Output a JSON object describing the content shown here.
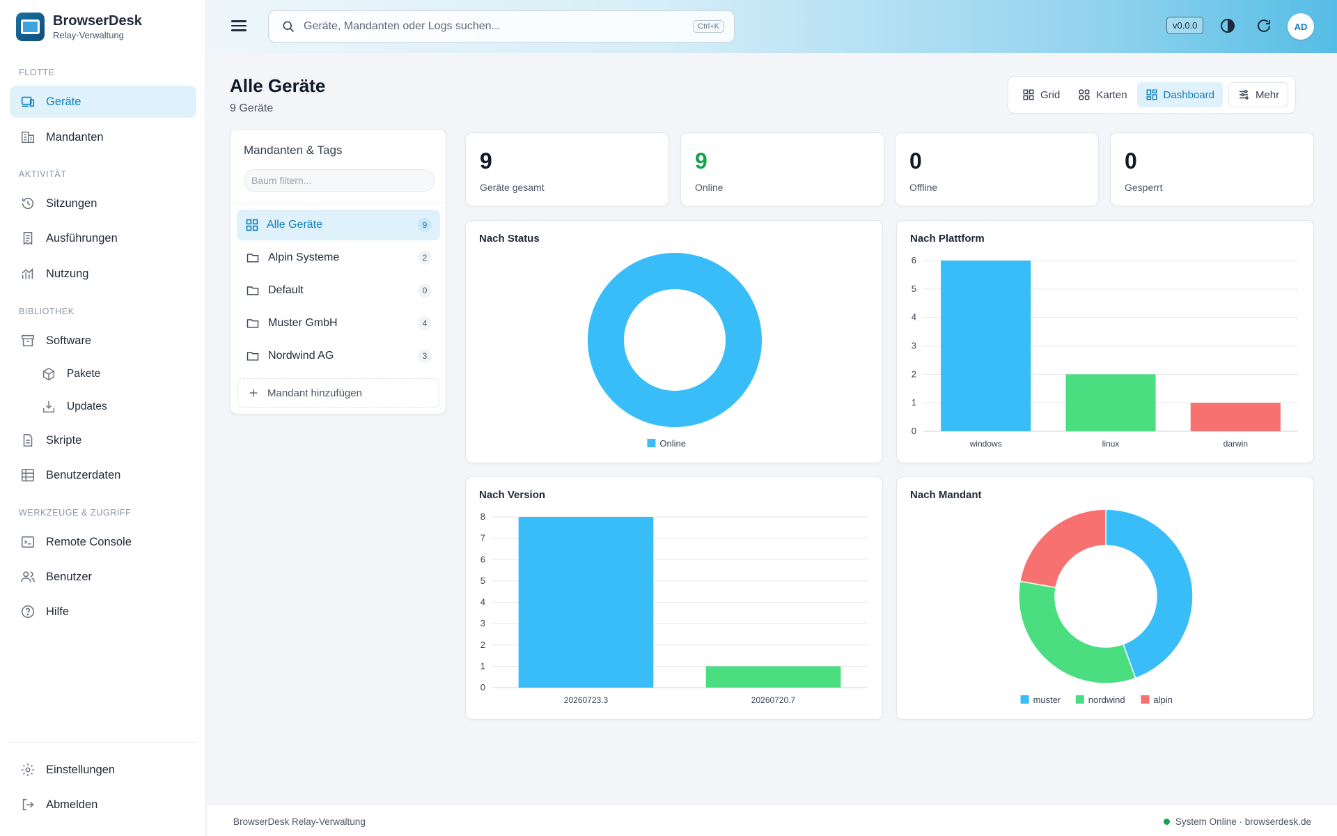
{
  "brand": {
    "title": "BrowserDesk",
    "subtitle": "Relay-Verwaltung"
  },
  "sidebar": {
    "sections": [
      {
        "label": "FLOTTE"
      },
      {
        "label": "AKTIVITÄT"
      },
      {
        "label": "BIBLIOTHEK"
      },
      {
        "label": "WERKZEUGE & ZUGRIFF"
      }
    ],
    "items": [
      {
        "label": "Geräte",
        "icon": "devices-icon",
        "active": true
      },
      {
        "label": "Mandanten",
        "icon": "building-icon"
      },
      {
        "label": "Sitzungen",
        "icon": "history-icon"
      },
      {
        "label": "Ausführungen",
        "icon": "receipt-icon"
      },
      {
        "label": "Nutzung",
        "icon": "chart-icon"
      },
      {
        "label": "Software",
        "icon": "archive-icon"
      },
      {
        "label": "Pakete",
        "icon": "package-icon"
      },
      {
        "label": "Updates",
        "icon": "download-icon"
      },
      {
        "label": "Skripte",
        "icon": "file-icon"
      },
      {
        "label": "Benutzerdaten",
        "icon": "grid-icon"
      },
      {
        "label": "Remote Console",
        "icon": "terminal-icon"
      },
      {
        "label": "Benutzer",
        "icon": "users-icon"
      },
      {
        "label": "Hilfe",
        "icon": "help-icon"
      }
    ],
    "bottom": [
      {
        "label": "Einstellungen",
        "icon": "gear-icon"
      },
      {
        "label": "Abmelden",
        "icon": "logout-icon"
      }
    ]
  },
  "topbar": {
    "search_placeholder": "Geräte, Mandanten oder Logs suchen...",
    "shortcut": "Ctrl+K",
    "version": "v0.0.0",
    "avatar": "AD"
  },
  "page": {
    "title": "Alle Geräte",
    "subtitle": "9 Geräte"
  },
  "views": [
    {
      "label": "Grid",
      "active": false
    },
    {
      "label": "Karten",
      "active": false
    },
    {
      "label": "Dashboard",
      "active": true
    },
    {
      "label": "Mehr",
      "active": false
    }
  ],
  "tree": {
    "title": "Mandanten & Tags",
    "filter_placeholder": "Baum filtern...",
    "items": [
      {
        "label": "Alle Geräte",
        "count": "9",
        "active": true
      },
      {
        "label": "Alpin Systeme",
        "count": "2"
      },
      {
        "label": "Default",
        "count": "0"
      },
      {
        "label": "Muster GmbH",
        "count": "4"
      },
      {
        "label": "Nordwind AG",
        "count": "3"
      }
    ],
    "add_label": "Mandant hinzufügen"
  },
  "stats": [
    {
      "value": "9",
      "label": "Geräte gesamt"
    },
    {
      "value": "9",
      "label": "Online",
      "color": "#16a34a"
    },
    {
      "value": "0",
      "label": "Offline"
    },
    {
      "value": "0",
      "label": "Gesperrt"
    }
  ],
  "colors": {
    "blue": "#38bdf8",
    "green": "#4ade80",
    "red": "#f87171",
    "accent": "#0e7fb8"
  },
  "chart_data": [
    {
      "type": "pie",
      "title": "Nach Status",
      "categories": [
        "Online"
      ],
      "values": [
        9
      ],
      "legend": "bottom"
    },
    {
      "type": "bar",
      "title": "Nach Plattform",
      "categories": [
        "windows",
        "linux",
        "darwin"
      ],
      "values": [
        6,
        2,
        1
      ],
      "ylim": [
        0,
        6
      ],
      "yticks": [
        0,
        1,
        2,
        3,
        4,
        5,
        6
      ],
      "grid": true
    },
    {
      "type": "bar",
      "title": "Nach Version",
      "categories": [
        "20260723.3",
        "20260720.7"
      ],
      "values": [
        8,
        1
      ],
      "ylim": [
        0,
        8
      ],
      "yticks": [
        0,
        1,
        2,
        3,
        4,
        5,
        6,
        7,
        8
      ],
      "grid": true
    },
    {
      "type": "pie",
      "title": "Nach Mandant",
      "categories": [
        "muster",
        "nordwind",
        "alpin"
      ],
      "values": [
        4,
        3,
        2
      ],
      "legend": "bottom"
    }
  ],
  "footer": {
    "left": "BrowserDesk Relay-Verwaltung",
    "right": "System Online · browserdesk.de"
  }
}
